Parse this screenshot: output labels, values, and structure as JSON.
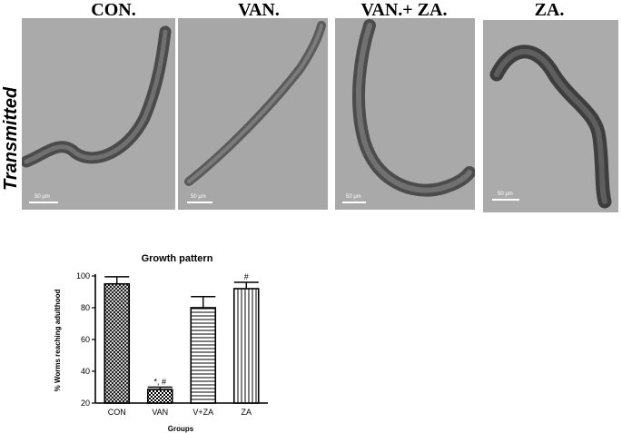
{
  "figure": {
    "side_label": "Transmitted",
    "panels": [
      {
        "title": "CON.",
        "scale_bar": "50 μm"
      },
      {
        "title": "VAN.",
        "scale_bar": "50 μm"
      },
      {
        "title": "VAN.+ ZA.",
        "scale_bar": "50 μm"
      },
      {
        "title": "ZA.",
        "scale_bar": "50 μm"
      }
    ]
  },
  "chart_data": {
    "type": "bar",
    "title": "Growth pattern",
    "xlabel": "Groups",
    "ylabel": "% Worms reaching adulthood",
    "ylim": [
      20,
      100
    ],
    "yticks": [
      20,
      40,
      60,
      80,
      100
    ],
    "categories": [
      "CON",
      "VAN",
      "V+ZA",
      "ZA"
    ],
    "values": [
      95,
      28.5,
      80,
      92
    ],
    "errors": [
      4.5,
      1.5,
      7,
      4
    ],
    "annotations": [
      "",
      "*, #",
      "",
      "#"
    ],
    "patterns": [
      "crosshatch",
      "checkered",
      "horizontal-lines",
      "vertical-lines"
    ]
  }
}
